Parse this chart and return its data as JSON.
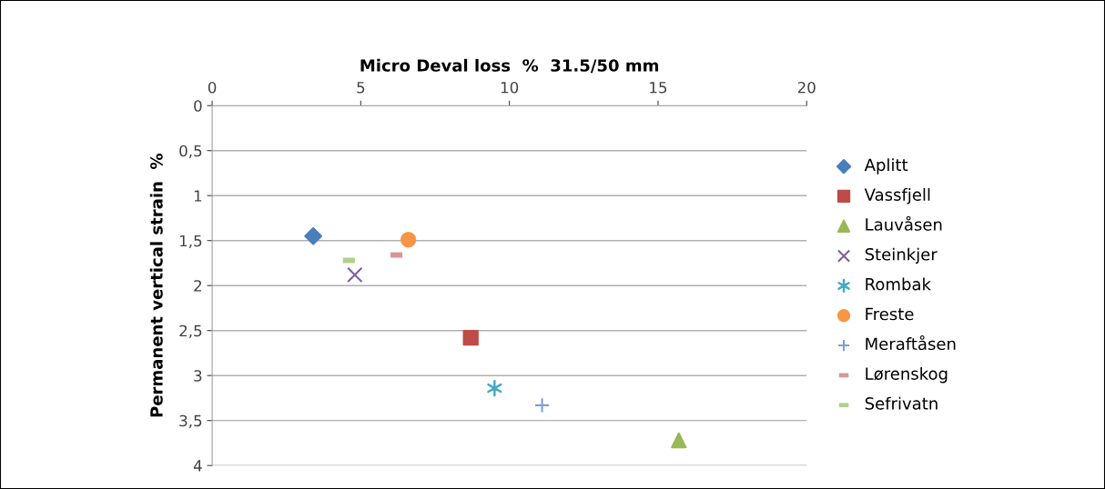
{
  "chart_data": {
    "type": "scatter",
    "xlabel": "Micro Deval loss  %  31.5/50 mm",
    "ylabel": "Permanent vertical strain  %",
    "xlim": [
      0,
      20
    ],
    "xticks": [
      0,
      5,
      10,
      15,
      20
    ],
    "ylim": [
      4,
      0
    ],
    "yticks": [
      0,
      {
        "value": 0.5,
        "label": "0,5"
      },
      1,
      {
        "value": 1.5,
        "label": "1,5"
      },
      2,
      {
        "value": 2.5,
        "label": "2,5"
      },
      3,
      {
        "value": 3.5,
        "label": "3,5"
      },
      4
    ],
    "grid": "y",
    "legend": "right",
    "series": [
      {
        "name": "Aplitt",
        "color": "#4a7ebb",
        "marker": "diamond",
        "x": [
          3.4
        ],
        "values": [
          1.45
        ]
      },
      {
        "name": "Vassfjell",
        "color": "#be4b48",
        "marker": "square",
        "x": [
          8.7
        ],
        "values": [
          2.58
        ]
      },
      {
        "name": "Lauvåsen",
        "color": "#98b954",
        "marker": "triangle",
        "x": [
          15.7
        ],
        "values": [
          3.72
        ]
      },
      {
        "name": "Steinkjer",
        "color": "#7d60a0",
        "marker": "cross",
        "x": [
          4.8
        ],
        "values": [
          1.88
        ]
      },
      {
        "name": "Rombak",
        "color": "#46aac5",
        "x": [
          9.5
        ],
        "values": [
          3.14
        ]
      },
      {
        "name": "Freste",
        "color": "#f79646",
        "marker": "circle",
        "x": [
          6.6
        ],
        "values": [
          1.49
        ]
      },
      {
        "name": "Meraftåsen",
        "color": "#7f9fd6",
        "marker": "plus",
        "x": [
          11.1
        ],
        "values": [
          3.33
        ]
      },
      {
        "name": "Lørenskog",
        "color": "#d99694",
        "x": [
          6.2
        ],
        "values": [
          1.66
        ]
      },
      {
        "name": "Sefrivatn",
        "color": "#b3cf8a",
        "x": [
          4.6
        ],
        "values": [
          1.72
        ]
      }
    ]
  }
}
